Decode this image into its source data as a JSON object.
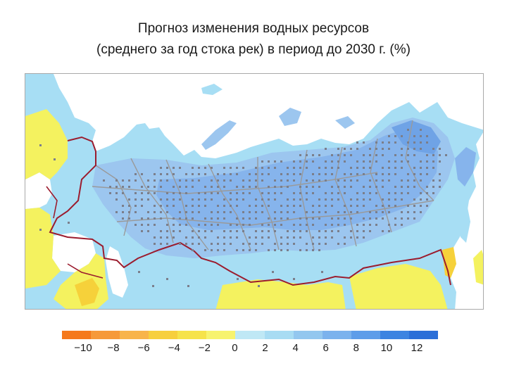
{
  "title": {
    "line1": "Прогноз изменения водных ресурсов",
    "line2": "(среднего за год стока рек)  в период до 2030 г. (%)"
  },
  "map": {
    "subject": "Russia and neighbouring regions",
    "colors": {
      "ocean": "#ffffff",
      "increase_0_2": "#a7def4",
      "increase_2_4": "#9cc6ef",
      "increase_4_6": "#86b4ec",
      "decrease_0_2": "#f4f25f",
      "decrease_2_4": "#f6d13a",
      "border_russia": "#9b1c2e",
      "border_regions": "#9a9a9a",
      "significance_dots": "#7b7f8c"
    }
  },
  "legend": {
    "labels": [
      "−10",
      "−8",
      "−6",
      "−4",
      "−2",
      "0",
      "2",
      "4",
      "6",
      "8",
      "10",
      "12"
    ],
    "colors": [
      "#f5791c",
      "#f6993a",
      "#f8b44a",
      "#f7cf3d",
      "#f6e34a",
      "#f7f36e",
      "#bfe8f5",
      "#a8dcf3",
      "#93c7ef",
      "#7bb2ed",
      "#5e9de9",
      "#3c84e1",
      "#2b6fd8"
    ]
  }
}
